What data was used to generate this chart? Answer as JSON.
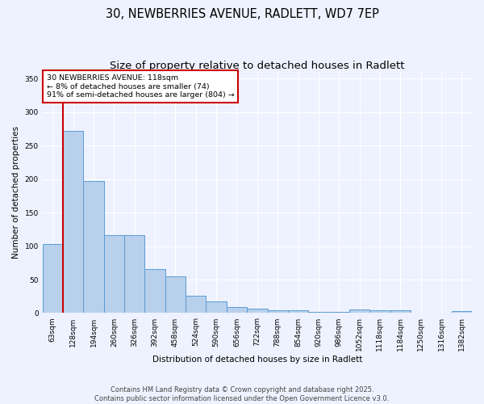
{
  "title_line1": "30, NEWBERRIES AVENUE, RADLETT, WD7 7EP",
  "title_line2": "Size of property relative to detached houses in Radlett",
  "xlabel": "Distribution of detached houses by size in Radlett",
  "ylabel": "Number of detached properties",
  "bin_labels": [
    "63sqm",
    "128sqm",
    "194sqm",
    "260sqm",
    "326sqm",
    "392sqm",
    "458sqm",
    "524sqm",
    "590sqm",
    "656sqm",
    "722sqm",
    "788sqm",
    "854sqm",
    "920sqm",
    "986sqm",
    "1052sqm",
    "1118sqm",
    "1184sqm",
    "1250sqm",
    "1316sqm",
    "1382sqm"
  ],
  "heights": [
    103,
    272,
    197,
    116,
    116,
    66,
    55,
    26,
    17,
    9,
    6,
    4,
    4,
    2,
    2,
    5,
    4,
    4,
    0,
    0,
    3
  ],
  "num_bins": 21,
  "bar_color": "#b8d0eb",
  "bar_edge_color": "#5b9bd5",
  "vline_color": "#cc0000",
  "vline_x": 0.5,
  "annotation_text": "30 NEWBERRIES AVENUE: 118sqm\n← 8% of detached houses are smaller (74)\n91% of semi-detached houses are larger (804) →",
  "annotation_box_color": "white",
  "annotation_border_color": "#cc0000",
  "ylim": [
    0,
    360
  ],
  "yticks": [
    0,
    50,
    100,
    150,
    200,
    250,
    300,
    350
  ],
  "bg_color": "#eef2ff",
  "footer_text": "Contains HM Land Registry data © Crown copyright and database right 2025.\nContains public sector information licensed under the Open Government Licence v3.0.",
  "title_fontsize": 10.5,
  "subtitle_fontsize": 9.5,
  "axis_label_fontsize": 7.5,
  "tick_fontsize": 6.5,
  "annotation_fontsize": 6.8,
  "footer_fontsize": 6.0
}
